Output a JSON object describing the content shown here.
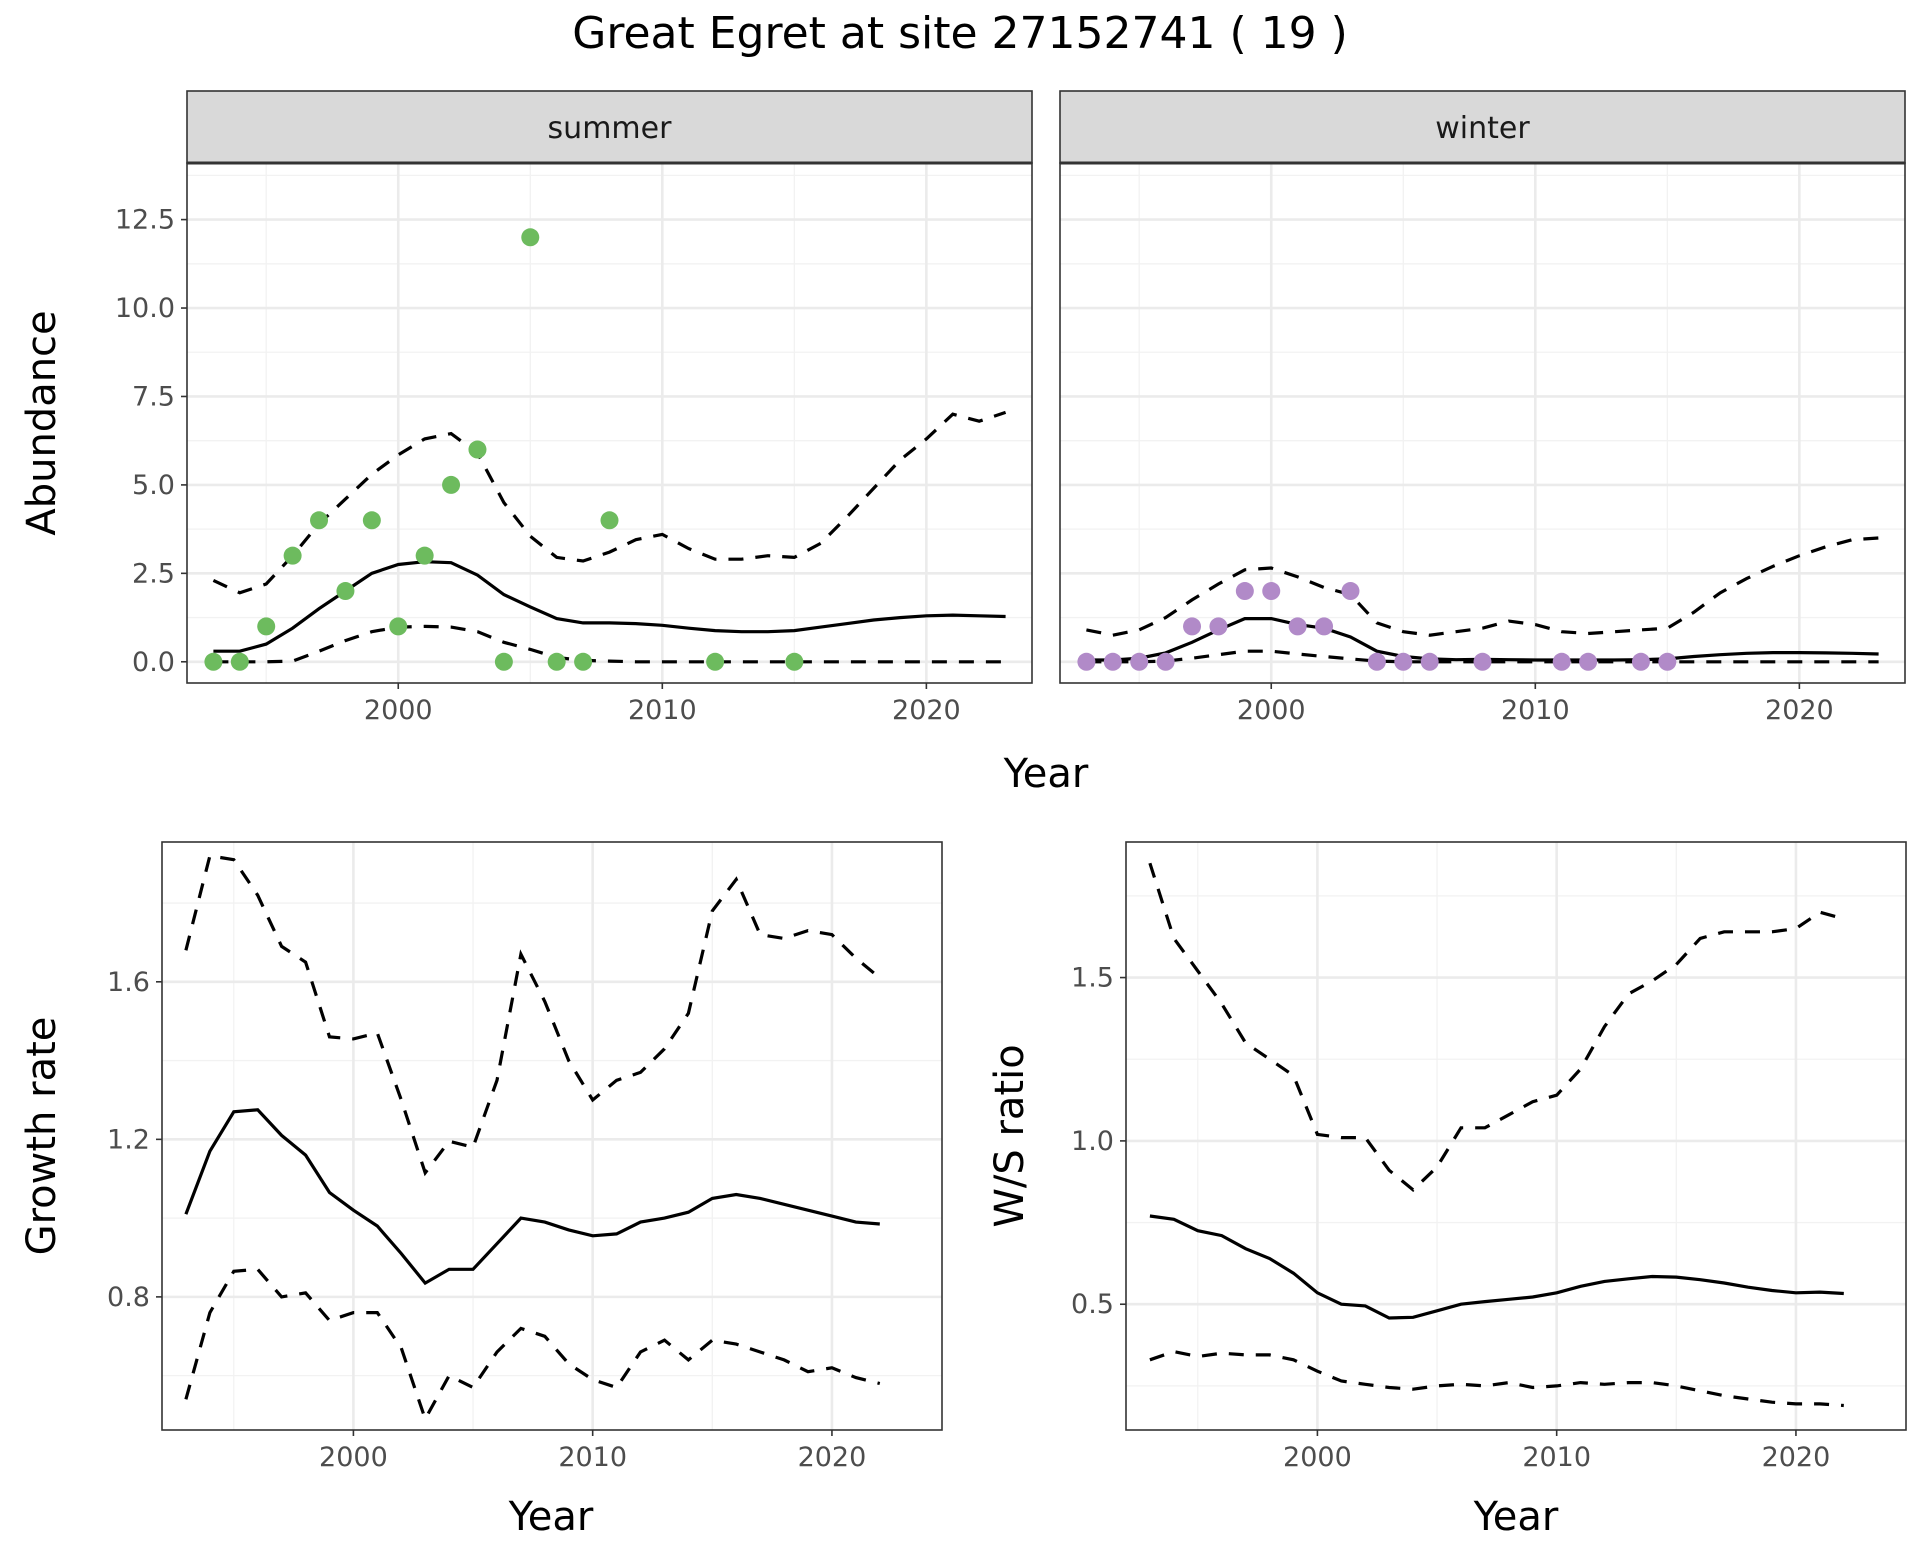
{
  "title": "Great Egret at site 27152741 ( 19 )",
  "chart_data": [
    {
      "id": "abundance",
      "type": "scatter",
      "facets": [
        "summer",
        "winter"
      ],
      "xlabel": "Year",
      "ylabel": "Abundance",
      "xlim": [
        1992.0,
        2024.0
      ],
      "ylim": [
        -0.6,
        14.1
      ],
      "xticks": [
        2000,
        2010,
        2020
      ],
      "yticks": [
        0,
        2.5,
        5,
        7.5,
        10,
        12.5
      ],
      "ytick_labels": [
        "0.0",
        "2.5",
        "5.0",
        "7.5",
        "10.0",
        "12.5"
      ],
      "grid": true,
      "panels": [
        {
          "label": "summer",
          "point_color": "#6dbb5e",
          "points": {
            "x": [
              1993,
              1994,
              1995,
              1996,
              1997,
              1998,
              1999,
              2000,
              2001,
              2002,
              2003,
              2004,
              2005,
              2006,
              2007,
              2008,
              2012,
              2015
            ],
            "y": [
              0,
              0,
              1,
              3,
              4,
              2,
              4,
              1,
              3,
              5,
              6,
              0,
              12,
              0,
              0,
              4,
              0,
              0
            ]
          },
          "fit": {
            "x": [
              1993,
              1994,
              1995,
              1996,
              1997,
              1998,
              1999,
              2000,
              2001,
              2002,
              2003,
              2004,
              2005,
              2006,
              2007,
              2008,
              2009,
              2010,
              2011,
              2012,
              2013,
              2014,
              2015,
              2016,
              2017,
              2018,
              2019,
              2020,
              2021,
              2022,
              2023
            ],
            "y": [
              0.3,
              0.3,
              0.5,
              0.95,
              1.5,
              2.0,
              2.5,
              2.75,
              2.83,
              2.8,
              2.45,
              1.9,
              1.55,
              1.22,
              1.1,
              1.1,
              1.08,
              1.03,
              0.95,
              0.88,
              0.85,
              0.85,
              0.88,
              0.98,
              1.08,
              1.18,
              1.25,
              1.3,
              1.32,
              1.3,
              1.28
            ]
          },
          "upper": {
            "x": [
              1993,
              1994,
              1995,
              1996,
              1997,
              1998,
              1999,
              2000,
              2001,
              2002,
              2003,
              2004,
              2005,
              2006,
              2007,
              2008,
              2009,
              2010,
              2011,
              2012,
              2013,
              2014,
              2015,
              2016,
              2017,
              2018,
              2019,
              2020,
              2021,
              2022,
              2023
            ],
            "y": [
              2.3,
              1.95,
              2.2,
              3.0,
              3.9,
              4.6,
              5.3,
              5.85,
              6.3,
              6.45,
              5.9,
              4.5,
              3.55,
              2.95,
              2.85,
              3.1,
              3.45,
              3.6,
              3.2,
              2.9,
              2.9,
              3.0,
              2.95,
              3.35,
              4.1,
              4.9,
              5.7,
              6.3,
              7.0,
              6.8,
              7.05
            ]
          },
          "lower": {
            "x": [
              1993,
              1994,
              1995,
              1996,
              1997,
              1998,
              1999,
              2000,
              2001,
              2002,
              2003,
              2004,
              2005,
              2006,
              2007,
              2008,
              2009,
              2010,
              2011,
              2012,
              2013,
              2014,
              2015,
              2016,
              2017,
              2018,
              2019,
              2020,
              2021,
              2022,
              2023
            ],
            "y": [
              0,
              0,
              0,
              0.02,
              0.3,
              0.6,
              0.85,
              0.98,
              1.0,
              0.98,
              0.85,
              0.55,
              0.35,
              0.12,
              0.04,
              0.02,
              0,
              0,
              0,
              0,
              0,
              0,
              0,
              0,
              0,
              0,
              0,
              0,
              0,
              0,
              0
            ]
          }
        },
        {
          "label": "winter",
          "point_color": "#b18ac8",
          "points": {
            "x": [
              1993,
              1994,
              1995,
              1996,
              1997,
              1998,
              1999,
              2000,
              2001,
              2002,
              2003,
              2004,
              2005,
              2006,
              2008,
              2011,
              2012,
              2014,
              2015
            ],
            "y": [
              0,
              0,
              0,
              0,
              1,
              1,
              2,
              2,
              1,
              1,
              2,
              0,
              0,
              0,
              0,
              0,
              0,
              0,
              0
            ]
          },
          "fit": {
            "x": [
              1993,
              1994,
              1995,
              1996,
              1997,
              1998,
              1999,
              2000,
              2001,
              2002,
              2003,
              2004,
              2005,
              2006,
              2007,
              2008,
              2009,
              2010,
              2011,
              2012,
              2013,
              2014,
              2015,
              2016,
              2017,
              2018,
              2019,
              2020,
              2021,
              2022,
              2023
            ],
            "y": [
              0.05,
              0.05,
              0.1,
              0.25,
              0.55,
              0.9,
              1.22,
              1.22,
              1.05,
              0.95,
              0.7,
              0.3,
              0.15,
              0.08,
              0.06,
              0.07,
              0.06,
              0.05,
              0.05,
              0.05,
              0.05,
              0.06,
              0.08,
              0.15,
              0.2,
              0.24,
              0.26,
              0.26,
              0.25,
              0.24,
              0.22
            ]
          },
          "upper": {
            "x": [
              1993,
              1994,
              1995,
              1996,
              1997,
              1998,
              1999,
              2000,
              2001,
              2002,
              2003,
              2004,
              2005,
              2006,
              2007,
              2008,
              2009,
              2010,
              2011,
              2012,
              2013,
              2014,
              2015,
              2016,
              2017,
              2018,
              2019,
              2020,
              2021,
              2022,
              2023
            ],
            "y": [
              0.9,
              0.75,
              0.9,
              1.25,
              1.75,
              2.2,
              2.6,
              2.65,
              2.4,
              2.1,
              1.9,
              1.1,
              0.85,
              0.75,
              0.85,
              0.95,
              1.15,
              1.05,
              0.85,
              0.8,
              0.85,
              0.9,
              0.95,
              1.4,
              1.95,
              2.35,
              2.7,
              3.0,
              3.25,
              3.45,
              3.5
            ]
          },
          "lower": {
            "x": [
              1993,
              1994,
              1995,
              1996,
              1997,
              1998,
              1999,
              2000,
              2001,
              2002,
              2003,
              2004,
              2005,
              2006,
              2007,
              2008,
              2009,
              2010,
              2011,
              2012,
              2013,
              2014,
              2015,
              2016,
              2017,
              2018,
              2019,
              2020,
              2021,
              2022,
              2023
            ],
            "y": [
              0,
              0,
              0,
              0.02,
              0.1,
              0.2,
              0.3,
              0.3,
              0.22,
              0.15,
              0.08,
              0.02,
              0,
              0,
              0,
              0,
              0,
              0,
              0,
              0,
              0,
              0,
              0,
              0,
              0,
              0,
              0,
              0,
              0,
              0,
              0
            ]
          }
        }
      ]
    },
    {
      "id": "growth",
      "type": "line",
      "xlabel": "Year",
      "ylabel": "Growth rate",
      "xlim": [
        1992.0,
        2024.6
      ],
      "ylim": [
        0.462,
        1.955
      ],
      "xticks": [
        2000,
        2010,
        2020
      ],
      "yticks": [
        0.8,
        1.2,
        1.6
      ],
      "ytick_labels": [
        "0.8",
        "1.2",
        "1.6"
      ],
      "grid": true,
      "x": [
        1993,
        1994,
        1995,
        1996,
        1997,
        1998,
        1999,
        2000,
        2001,
        2002,
        2003,
        2004,
        2005,
        2006,
        2007,
        2008,
        2009,
        2010,
        2011,
        2012,
        2013,
        2014,
        2015,
        2016,
        2017,
        2018,
        2019,
        2020,
        2021,
        2022
      ],
      "series": [
        {
          "style": "solid",
          "values": [
            1.01,
            1.17,
            1.27,
            1.275,
            1.21,
            1.16,
            1.065,
            1.02,
            0.98,
            0.91,
            0.835,
            0.87,
            0.87,
            0.935,
            1.0,
            0.99,
            0.97,
            0.955,
            0.96,
            0.99,
            1.0,
            1.015,
            1.05,
            1.06,
            1.05,
            1.035,
            1.02,
            1.005,
            0.99,
            0.985
          ]
        },
        {
          "style": "dashed",
          "values": [
            1.68,
            1.92,
            1.91,
            1.82,
            1.69,
            1.65,
            1.46,
            1.455,
            1.47,
            1.3,
            1.115,
            1.195,
            1.18,
            1.35,
            1.67,
            1.55,
            1.4,
            1.3,
            1.35,
            1.37,
            1.43,
            1.52,
            1.78,
            1.86,
            1.72,
            1.71,
            1.73,
            1.72,
            1.66,
            1.61
          ]
        },
        {
          "style": "dashed",
          "values": [
            0.54,
            0.76,
            0.865,
            0.87,
            0.8,
            0.81,
            0.74,
            0.76,
            0.76,
            0.67,
            0.49,
            0.6,
            0.57,
            0.66,
            0.72,
            0.7,
            0.63,
            0.59,
            0.57,
            0.66,
            0.69,
            0.64,
            0.69,
            0.68,
            0.66,
            0.64,
            0.61,
            0.62,
            0.595,
            0.58
          ]
        }
      ]
    },
    {
      "id": "ratio",
      "type": "line",
      "xlabel": "Year",
      "ylabel": "W/S ratio",
      "xlim": [
        1992.0,
        2024.6
      ],
      "ylim": [
        0.115,
        1.915
      ],
      "xticks": [
        2000,
        2010,
        2020
      ],
      "yticks": [
        0.5,
        1.0,
        1.5
      ],
      "ytick_labels": [
        "0.5",
        "1.0",
        "1.5"
      ],
      "grid": true,
      "x": [
        1993,
        1994,
        1995,
        1996,
        1997,
        1998,
        1999,
        2000,
        2001,
        2002,
        2003,
        2004,
        2005,
        2006,
        2007,
        2008,
        2009,
        2010,
        2011,
        2012,
        2013,
        2014,
        2015,
        2016,
        2017,
        2018,
        2019,
        2020,
        2021,
        2022
      ],
      "series": [
        {
          "style": "solid",
          "values": [
            0.77,
            0.76,
            0.725,
            0.71,
            0.67,
            0.64,
            0.595,
            0.535,
            0.5,
            0.495,
            0.458,
            0.46,
            0.48,
            0.5,
            0.508,
            0.515,
            0.522,
            0.535,
            0.555,
            0.57,
            0.578,
            0.585,
            0.583,
            0.575,
            0.565,
            0.552,
            0.542,
            0.535,
            0.537,
            0.533
          ]
        },
        {
          "style": "dashed",
          "values": [
            1.85,
            1.62,
            1.52,
            1.42,
            1.3,
            1.25,
            1.2,
            1.02,
            1.01,
            1.01,
            0.91,
            0.85,
            0.92,
            1.04,
            1.04,
            1.08,
            1.12,
            1.14,
            1.22,
            1.35,
            1.45,
            1.49,
            1.54,
            1.62,
            1.64,
            1.64,
            1.64,
            1.65,
            1.7,
            1.68
          ]
        },
        {
          "style": "dashed",
          "values": [
            0.33,
            0.355,
            0.34,
            0.35,
            0.345,
            0.345,
            0.33,
            0.295,
            0.265,
            0.255,
            0.245,
            0.24,
            0.25,
            0.255,
            0.25,
            0.26,
            0.245,
            0.25,
            0.26,
            0.255,
            0.26,
            0.26,
            0.25,
            0.235,
            0.22,
            0.21,
            0.2,
            0.195,
            0.195,
            0.19
          ]
        }
      ]
    }
  ]
}
